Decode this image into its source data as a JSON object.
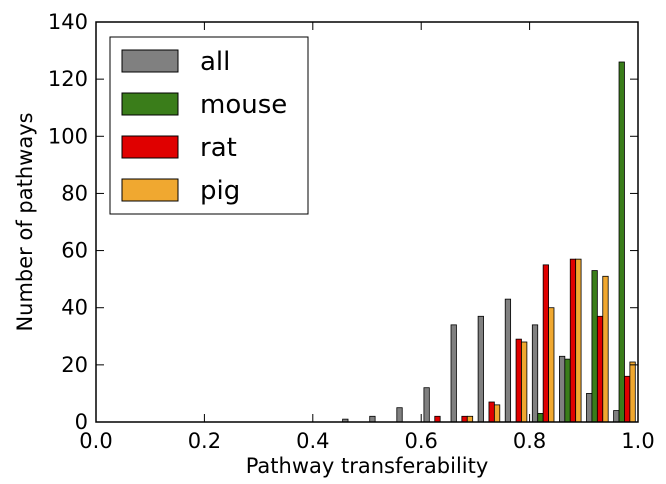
{
  "chart_data": {
    "type": "bar",
    "xlabel": "Pathway transferability",
    "ylabel": "Number of pathways",
    "xlim": [
      0.0,
      1.0
    ],
    "ylim": [
      0,
      140
    ],
    "xticks": [
      "0.0",
      "0.2",
      "0.4",
      "0.6",
      "0.8",
      "1.0"
    ],
    "yticks": [
      "0",
      "20",
      "40",
      "60",
      "80",
      "100",
      "120",
      "140"
    ],
    "grid": false,
    "legend_position": "top-left",
    "bin_edges": [
      0.0,
      0.05,
      0.1,
      0.15,
      0.2,
      0.25,
      0.3,
      0.35,
      0.4,
      0.45,
      0.5,
      0.55,
      0.6,
      0.65,
      0.7,
      0.75,
      0.8,
      0.85,
      0.9,
      0.95,
      1.0
    ],
    "series": [
      {
        "name": "all",
        "color": "#808080",
        "values": [
          0,
          0,
          0,
          0,
          0,
          0,
          0,
          0,
          0,
          1,
          2,
          5,
          12,
          34,
          37,
          43,
          34,
          23,
          10,
          4
        ]
      },
      {
        "name": "mouse",
        "color": "#3a7d1a",
        "values": [
          0,
          0,
          0,
          0,
          0,
          0,
          0,
          0,
          0,
          0,
          0,
          0,
          0,
          0,
          0,
          0,
          3,
          22,
          53,
          126
        ]
      },
      {
        "name": "rat",
        "color": "#e00000",
        "values": [
          0,
          0,
          0,
          0,
          0,
          0,
          0,
          0,
          0,
          0,
          0,
          0,
          2,
          2,
          7,
          29,
          55,
          57,
          37,
          16
        ]
      },
      {
        "name": "pig",
        "color": "#f0a830",
        "values": [
          0,
          0,
          0,
          0,
          0,
          0,
          0,
          0,
          0,
          0,
          0,
          0,
          0,
          2,
          6,
          28,
          40,
          57,
          51,
          21
        ]
      }
    ]
  }
}
